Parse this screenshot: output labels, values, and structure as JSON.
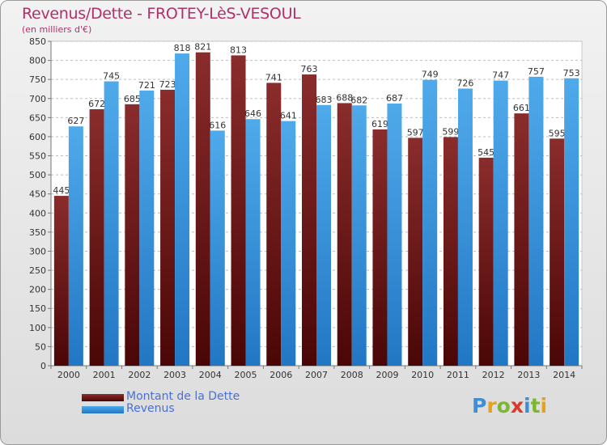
{
  "chart_data": {
    "type": "bar",
    "title": "Revenus/Dette - FROTEY-LèS-VESOUL",
    "subtitle": "(en milliers d'€)",
    "categories": [
      "2000",
      "2001",
      "2002",
      "2003",
      "2004",
      "2005",
      "2006",
      "2007",
      "2008",
      "2009",
      "2010",
      "2011",
      "2012",
      "2013",
      "2014"
    ],
    "series": [
      {
        "name": "Montant de la Dette",
        "color": "#7a1f1f",
        "values": [
          445,
          672,
          685,
          723,
          821,
          813,
          741,
          763,
          688,
          619,
          597,
          599,
          545,
          661,
          595
        ]
      },
      {
        "name": "Revenus",
        "color": "#3d9de0",
        "values": [
          627,
          745,
          721,
          818,
          616,
          646,
          641,
          683,
          682,
          687,
          749,
          726,
          747,
          757,
          753
        ]
      }
    ],
    "ylim": [
      0,
      850
    ],
    "yticks": [
      0,
      50,
      100,
      150,
      200,
      250,
      300,
      350,
      400,
      450,
      500,
      550,
      600,
      650,
      700,
      750,
      800,
      850
    ],
    "grid": "horizontal-dashed",
    "legend_position": "bottom-left"
  },
  "logo": {
    "letters": [
      "P",
      "r",
      "o",
      "x",
      "i",
      "t",
      "i"
    ],
    "colors": [
      "#3d8fd6",
      "#e8a020",
      "#7cb82f",
      "#d93a2b",
      "#3d8fd6",
      "#7cb82f",
      "#e8a020"
    ]
  }
}
